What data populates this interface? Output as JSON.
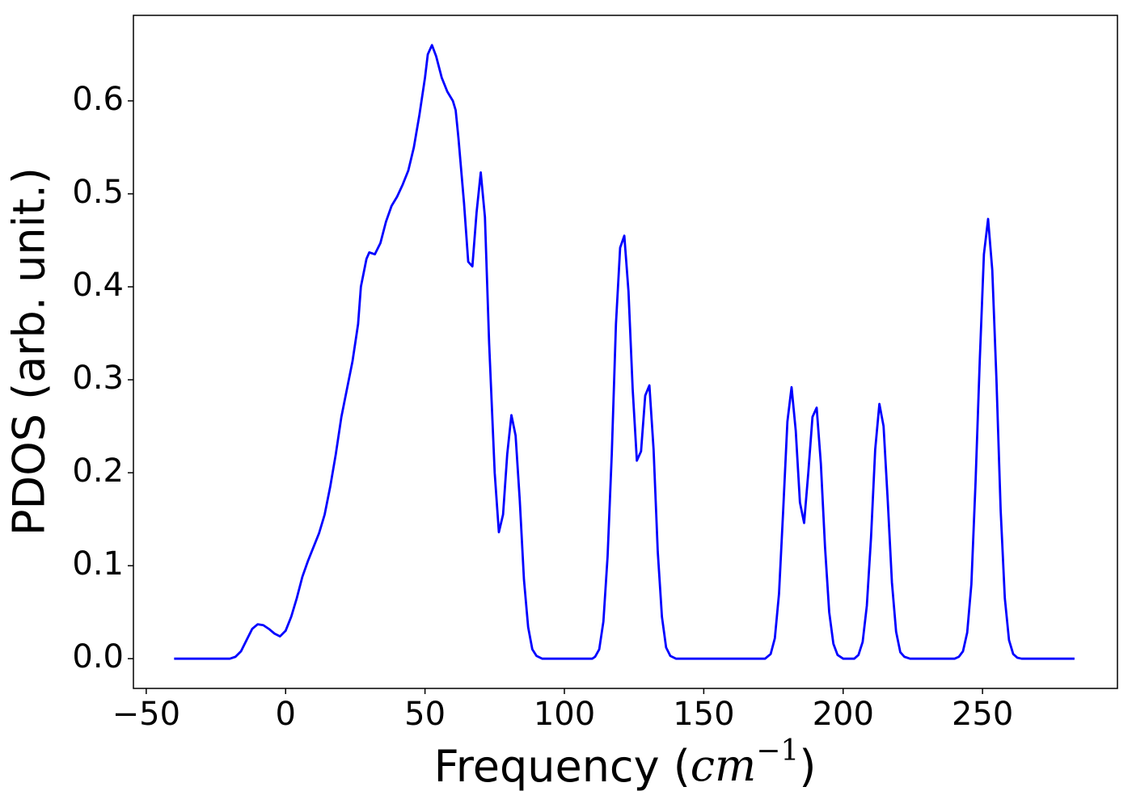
{
  "chart_data": {
    "type": "line",
    "ylabel": "PDOS (arb. unit.)",
    "xlabel": {
      "text": "Frequency (",
      "unit": "cm",
      "exponent": "−1",
      "close": ")"
    },
    "color": "#0000ff",
    "xlim": [
      -54.6,
      298.4
    ],
    "ylim": [
      -0.032,
      0.692
    ],
    "xticks": [
      {
        "value": -50,
        "label": "−50"
      },
      0,
      50,
      100,
      150,
      200,
      250
    ],
    "yticks": [
      {
        "value": 0,
        "label": "0.0"
      },
      0.1,
      0.2,
      0.3,
      0.4,
      0.5,
      0.6
    ],
    "x": [
      -40,
      -20,
      -18,
      -16,
      -14,
      -12,
      -10,
      -8,
      -6,
      -4,
      -2,
      0,
      2,
      4,
      6,
      8,
      10,
      12,
      14,
      16,
      18,
      20,
      22,
      24,
      26,
      27,
      29,
      30,
      32,
      34,
      36,
      38,
      40,
      42,
      44,
      46,
      48,
      50,
      51,
      52.5,
      54,
      56,
      58,
      60,
      61,
      62,
      64,
      65.5,
      67,
      68.5,
      70,
      71.5,
      73,
      75,
      76.5,
      78,
      79.5,
      81,
      82.5,
      84,
      85.5,
      87,
      88.5,
      90,
      92,
      110,
      111,
      112.5,
      114,
      115.5,
      117,
      118.5,
      120,
      121.5,
      123,
      124.5,
      126,
      127.5,
      129,
      130.5,
      132,
      133.5,
      135,
      136.5,
      138,
      140,
      172,
      174,
      175.5,
      177,
      178.5,
      180,
      181.5,
      183,
      184.5,
      186,
      187.5,
      189,
      190.5,
      192,
      193.5,
      195,
      196.5,
      198,
      200,
      204,
      205.5,
      207,
      208.5,
      210,
      211.5,
      213,
      214.5,
      216,
      217.5,
      219,
      220.5,
      222,
      224,
      240,
      241.5,
      243,
      244.5,
      246,
      247.5,
      249,
      250.5,
      252,
      253.5,
      255,
      256.5,
      258,
      259.5,
      261,
      262.5,
      264,
      283
    ],
    "values": [
      0,
      0,
      0.002,
      0.008,
      0.02,
      0.032,
      0.037,
      0.036,
      0.032,
      0.027,
      0.024,
      0.03,
      0.045,
      0.065,
      0.088,
      0.105,
      0.12,
      0.135,
      0.155,
      0.185,
      0.22,
      0.26,
      0.29,
      0.32,
      0.36,
      0.4,
      0.43,
      0.437,
      0.435,
      0.447,
      0.47,
      0.487,
      0.497,
      0.51,
      0.525,
      0.55,
      0.585,
      0.625,
      0.65,
      0.66,
      0.648,
      0.625,
      0.61,
      0.6,
      0.59,
      0.56,
      0.49,
      0.427,
      0.422,
      0.48,
      0.523,
      0.475,
      0.34,
      0.2,
      0.136,
      0.155,
      0.22,
      0.262,
      0.24,
      0.17,
      0.085,
      0.034,
      0.01,
      0.003,
      0,
      0,
      0.002,
      0.01,
      0.04,
      0.11,
      0.22,
      0.36,
      0.442,
      0.455,
      0.395,
      0.29,
      0.213,
      0.223,
      0.283,
      0.294,
      0.225,
      0.115,
      0.045,
      0.012,
      0.003,
      0,
      0,
      0.005,
      0.022,
      0.07,
      0.16,
      0.255,
      0.292,
      0.245,
      0.168,
      0.146,
      0.2,
      0.26,
      0.27,
      0.21,
      0.12,
      0.05,
      0.016,
      0.004,
      0,
      0,
      0.004,
      0.018,
      0.057,
      0.13,
      0.225,
      0.274,
      0.25,
      0.17,
      0.082,
      0.029,
      0.007,
      0.002,
      0,
      0,
      0.002,
      0.008,
      0.028,
      0.08,
      0.19,
      0.32,
      0.435,
      0.473,
      0.418,
      0.3,
      0.16,
      0.065,
      0.02,
      0.005,
      0.001,
      0,
      0
    ]
  }
}
